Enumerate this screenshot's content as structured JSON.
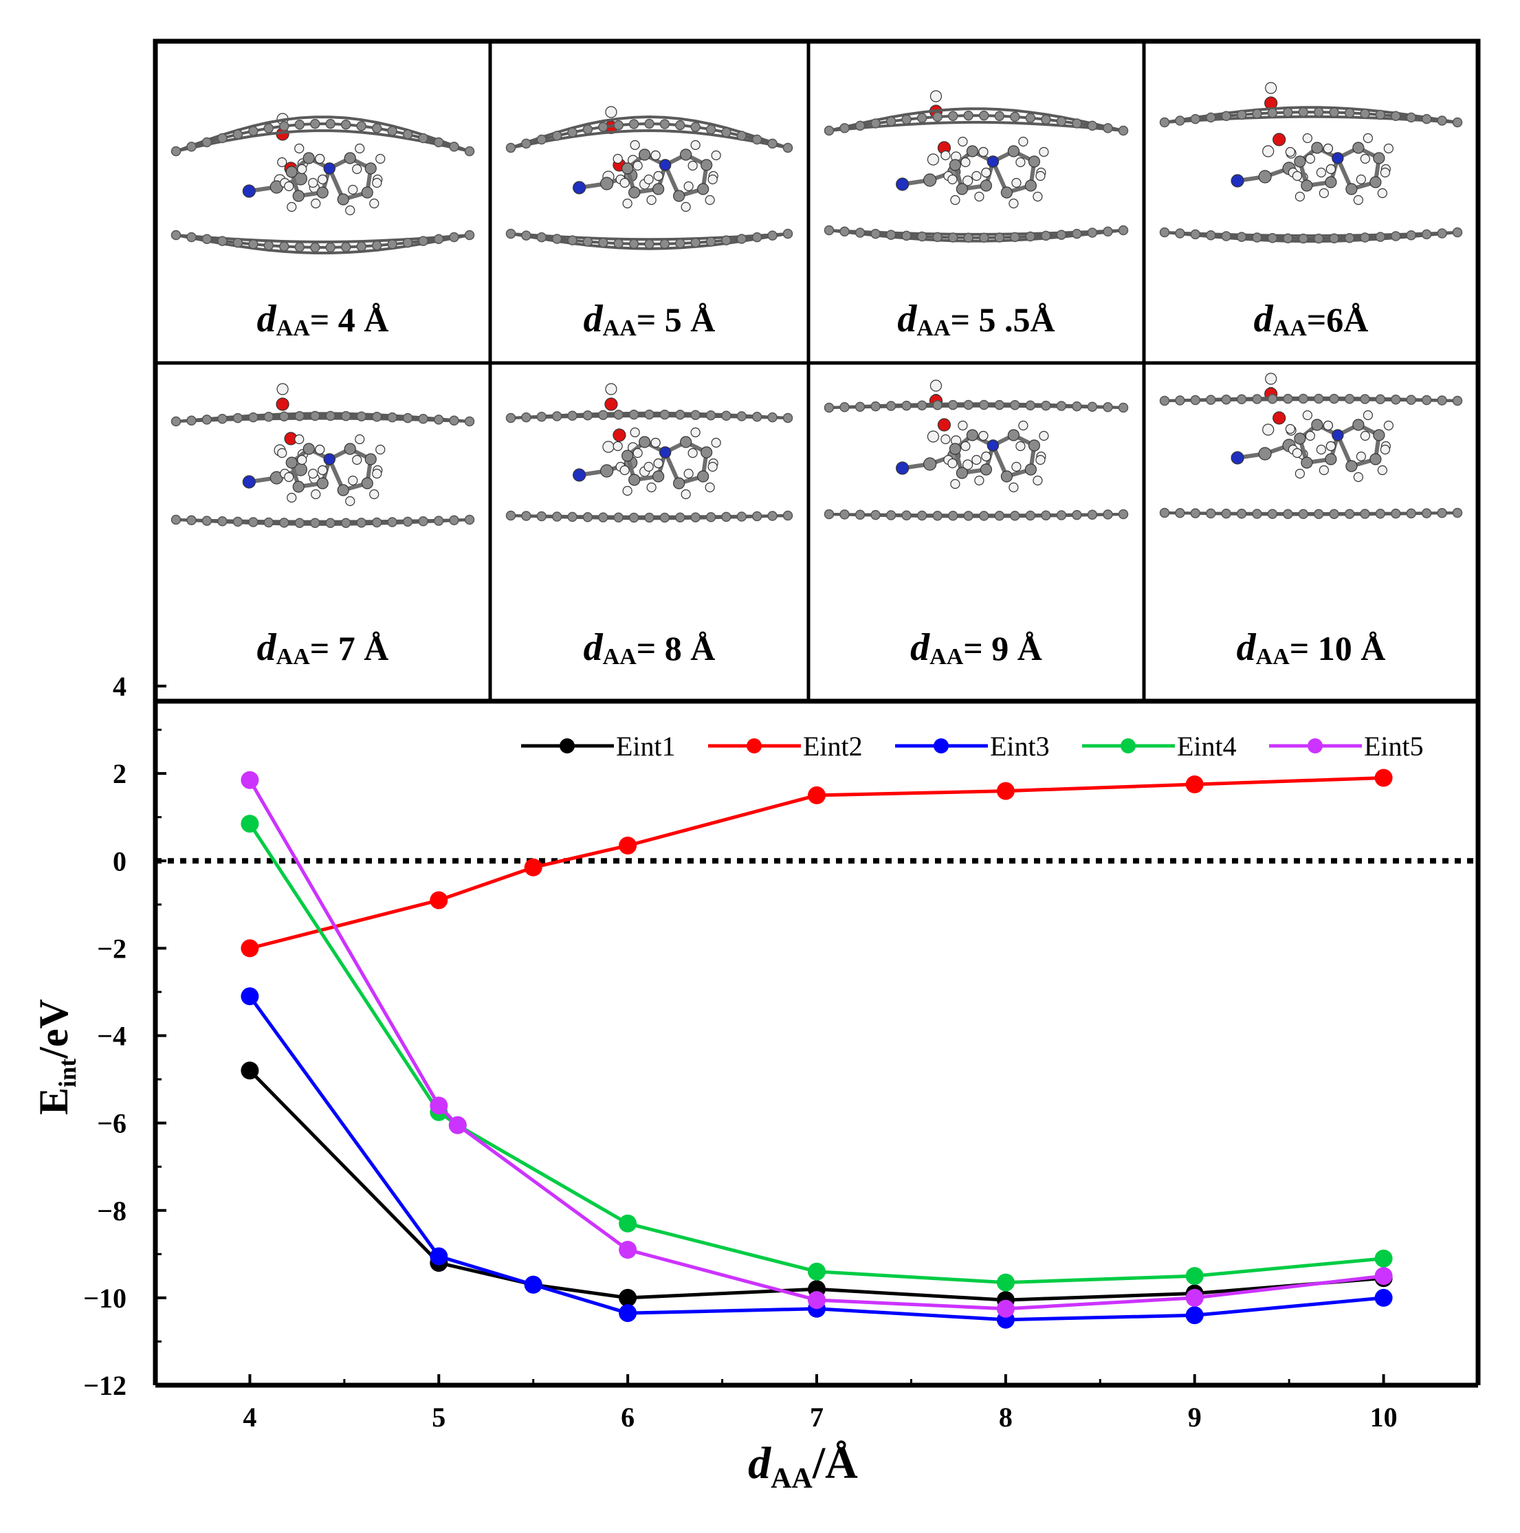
{
  "panels": [
    {
      "symbol": "d",
      "subscript": "AA",
      "value": "= 4 Å"
    },
    {
      "symbol": "d",
      "subscript": "AA",
      "value": "= 5 Å"
    },
    {
      "symbol": "d",
      "subscript": "AA",
      "value": "= 5 .5Å"
    },
    {
      "symbol": "d",
      "subscript": "AA",
      "value": "=6Å"
    },
    {
      "symbol": "d",
      "subscript": "AA",
      "value": "= 7 Å"
    },
    {
      "symbol": "d",
      "subscript": "AA",
      "value": "= 8 Å"
    },
    {
      "symbol": "d",
      "subscript": "AA",
      "value": "= 9 Å"
    },
    {
      "symbol": "d",
      "subscript": "AA",
      "value": "= 10 Å"
    }
  ],
  "chart_data": {
    "type": "line",
    "title": "",
    "xlabel": {
      "main": "d",
      "subscript": "AA",
      "suffix": "/Å"
    },
    "ylabel": {
      "main": "E",
      "subscript": "int",
      "suffix": "/eV"
    },
    "xlim": [
      3.5,
      10.5
    ],
    "ylim": [
      -12,
      4
    ],
    "xticks": [
      "4",
      "5",
      "6",
      "7",
      "8",
      "9",
      "10"
    ],
    "yticks": [
      "4",
      "2",
      "0",
      "−2",
      "−4",
      "−6",
      "−8",
      "−10",
      "−12"
    ],
    "reference_line": {
      "y": 0,
      "style": "dotted"
    },
    "legend_position": "top-right",
    "series": [
      {
        "name": "Eint1",
        "color": "#000000",
        "x": [
          4,
          5,
          5.5,
          6,
          7,
          8,
          9,
          10
        ],
        "values": [
          -4.8,
          -9.2,
          -9.7,
          -10.0,
          -9.8,
          -10.05,
          -9.9,
          -9.55
        ]
      },
      {
        "name": "Eint2",
        "color": "#ff0000",
        "x": [
          4,
          5,
          5.5,
          6,
          7,
          8,
          9,
          10
        ],
        "values": [
          -2.0,
          -0.9,
          -0.15,
          0.35,
          1.5,
          1.6,
          1.75,
          1.9
        ]
      },
      {
        "name": "Eint3",
        "color": "#0000ff",
        "x": [
          4,
          5,
          5.5,
          6,
          7,
          8,
          9,
          10
        ],
        "values": [
          -3.1,
          -9.05,
          -9.7,
          -10.35,
          -10.25,
          -10.5,
          -10.4,
          -10.0
        ]
      },
      {
        "name": "Eint4",
        "color": "#00cc44",
        "x": [
          4,
          5,
          5.1,
          6,
          7,
          8,
          9,
          10
        ],
        "values": [
          0.85,
          -5.75,
          -6.05,
          -8.3,
          -9.4,
          -9.65,
          -9.5,
          -9.1
        ]
      },
      {
        "name": "Eint5",
        "color": "#cc33ff",
        "x": [
          4,
          5,
          5.1,
          6,
          7,
          8,
          9,
          10
        ],
        "values": [
          1.85,
          -5.6,
          -6.05,
          -8.9,
          -10.05,
          -10.25,
          -10.0,
          -9.5
        ]
      }
    ]
  }
}
